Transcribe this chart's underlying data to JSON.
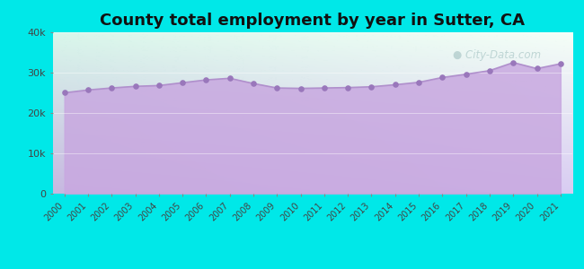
{
  "title": "County total employment by year in Sutter, CA",
  "years": [
    2000,
    2001,
    2002,
    2003,
    2004,
    2005,
    2006,
    2007,
    2008,
    2009,
    2010,
    2011,
    2012,
    2013,
    2014,
    2015,
    2016,
    2017,
    2018,
    2019,
    2020,
    2021
  ],
  "values": [
    25000,
    25700,
    26200,
    26600,
    26800,
    27500,
    28200,
    28600,
    27300,
    26200,
    26100,
    26200,
    26300,
    26500,
    27000,
    27600,
    28800,
    29600,
    30500,
    32500,
    31000,
    32200
  ],
  "ylim": [
    0,
    40000
  ],
  "yticks": [
    0,
    10000,
    20000,
    30000,
    40000
  ],
  "ytick_labels": [
    "0",
    "10k",
    "20k",
    "30k",
    "40k"
  ],
  "fill_color": "#c8a8e0",
  "fill_alpha": 0.85,
  "line_color": "#b090cc",
  "dot_color": "#9977bb",
  "background_color": "#00e8e8",
  "title_fontsize": 13,
  "title_fontweight": "bold",
  "watermark_text": "City-Data.com",
  "watermark_color": "#99bbbb",
  "watermark_alpha": 0.55
}
